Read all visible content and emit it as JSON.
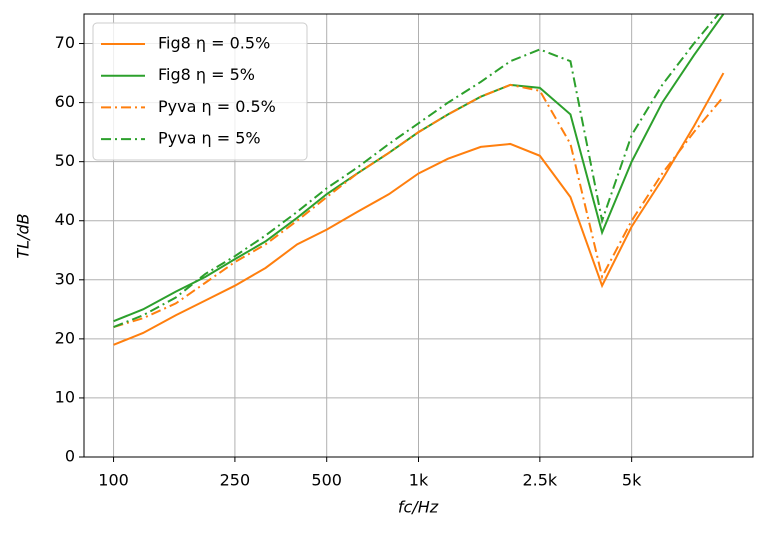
{
  "chart_data": {
    "type": "line",
    "xlabel": "fc/Hz",
    "ylabel": "TL/dB",
    "x": [
      100,
      125,
      160,
      200,
      250,
      315,
      400,
      500,
      630,
      800,
      1000,
      1250,
      1600,
      2000,
      2500,
      3150,
      4000,
      5000,
      6300,
      8000,
      10000
    ],
    "series": [
      {
        "name": "Fig8 η = 0.5%",
        "color": "#ff7f0e",
        "linestyle": "solid",
        "values": [
          19,
          21,
          24,
          26.5,
          29,
          32,
          36,
          38.5,
          41.5,
          44.5,
          48,
          50.5,
          52.5,
          53,
          51,
          44,
          29,
          39,
          47,
          56,
          65
        ]
      },
      {
        "name": "Fig8 η = 5%",
        "color": "#2ca02c",
        "linestyle": "solid",
        "values": [
          23,
          25,
          28,
          30.5,
          33.5,
          36.5,
          40.5,
          44.5,
          48,
          51.5,
          55,
          58,
          61,
          63,
          62.5,
          58,
          38,
          50,
          60,
          68,
          75
        ]
      },
      {
        "name": "Pyva η = 0.5%",
        "color": "#ff7f0e",
        "linestyle": "dashdot",
        "values": [
          22,
          23.5,
          26,
          29.5,
          33,
          36,
          40,
          44,
          48,
          51.5,
          55,
          58,
          61,
          63,
          62,
          53,
          30.5,
          40,
          48,
          55,
          61
        ]
      },
      {
        "name": "Pyva η = 5%",
        "color": "#2ca02c",
        "linestyle": "dashdot",
        "values": [
          22,
          24,
          27,
          31,
          34,
          37.5,
          41.5,
          45.5,
          49,
          53,
          56.5,
          60,
          63.5,
          67,
          69,
          67,
          40,
          54.5,
          63,
          70,
          76
        ]
      }
    ],
    "xlim": [
      80,
      12500
    ],
    "xscale": "log",
    "xticks": [
      100,
      250,
      500,
      {
        "value": 1000,
        "label": "1k"
      },
      {
        "value": 2500,
        "label": "2.5k"
      },
      {
        "value": 5000,
        "label": "5k"
      }
    ],
    "ylim": [
      0,
      75
    ],
    "yticks": [
      0,
      10,
      20,
      30,
      40,
      50,
      60,
      70
    ],
    "grid": true,
    "legend": "upper left"
  }
}
